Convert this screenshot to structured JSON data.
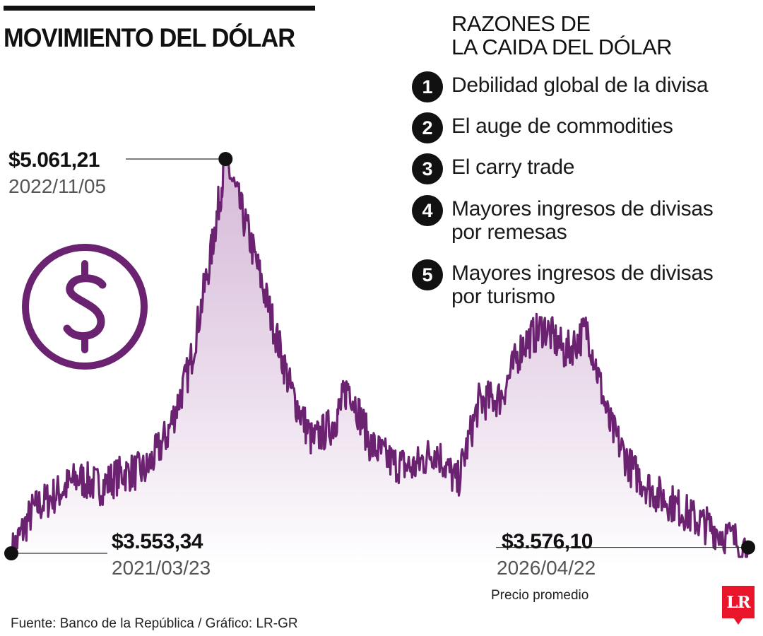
{
  "header": {
    "title": "MOVIMIENTO DEL DÓLAR"
  },
  "reasons": {
    "title_line1": "RAZONES DE",
    "title_line2": "LA CAIDA DEL DÓLAR",
    "items": [
      {
        "number": "1",
        "lines": [
          "Debilidad global de la divisa"
        ]
      },
      {
        "number": "2",
        "lines": [
          "El auge de commodities"
        ]
      },
      {
        "number": "3",
        "lines": [
          "El carry trade"
        ]
      },
      {
        "number": "4",
        "lines": [
          "Mayores ingresos de divisas",
          "por remesas"
        ]
      },
      {
        "number": "5",
        "lines": [
          "Mayores ingresos de divisas",
          "por turismo"
        ]
      }
    ]
  },
  "annotations": {
    "start": {
      "value": "$3.553,34",
      "date": "2021/03/23"
    },
    "peak": {
      "value": "$5.061,21",
      "date": "2022/11/05"
    },
    "end": {
      "value": "$3.576,10",
      "date": "2026/04/22"
    },
    "price_label": "Precio promedio"
  },
  "footer": {
    "source": "Fuente: Banco de la República / Gráfico: LR-GR",
    "logo_text": "LR"
  },
  "colors": {
    "line": "#6b2270",
    "fill_top": "#c9a3cc",
    "icon": "#6b2270",
    "text": "#111111",
    "logo": "#e8152b"
  },
  "icons": {
    "dollar": "dollar-circle-icon",
    "logo": "la-republica-logo"
  },
  "chart_data": {
    "type": "area",
    "title": "MOVIMIENTO DEL DÓLAR",
    "ylabel": "Precio promedio",
    "xlim": [
      2021.22,
      2026.31
    ],
    "ylim": [
      3553.34,
      5061.21
    ],
    "grid": false,
    "x": [
      2021.22,
      2021.37,
      2021.53,
      2021.68,
      2021.84,
      2021.99,
      2022.15,
      2022.3,
      2022.45,
      2022.6,
      2022.7,
      2022.85,
      2023.0,
      2023.15,
      2023.3,
      2023.45,
      2023.55,
      2023.7,
      2023.85,
      2024.0,
      2024.15,
      2024.3,
      2024.45,
      2024.6,
      2024.75,
      2024.9,
      2025.05,
      2025.2,
      2025.35,
      2025.5,
      2025.65,
      2025.8,
      2025.95,
      2026.1,
      2026.31
    ],
    "values": [
      3553.34,
      3720,
      3780,
      3840,
      3810,
      3860,
      3870,
      4010,
      4260,
      4700,
      5061.21,
      4790,
      4490,
      4180,
      3980,
      4050,
      4200,
      3970,
      3900,
      3880,
      3950,
      3820,
      4130,
      4150,
      4350,
      4420,
      4320,
      4410,
      4050,
      3880,
      3790,
      3740,
      3680,
      3640,
      3576.1
    ],
    "highlights": [
      {
        "label": "$3.553,34",
        "date": "2021/03/23",
        "value": 3553.34
      },
      {
        "label": "$5.061,21",
        "date": "2022/11/05",
        "value": 5061.21
      },
      {
        "label": "$3.576,10",
        "date": "2026/04/22",
        "value": 3576.1
      }
    ]
  }
}
